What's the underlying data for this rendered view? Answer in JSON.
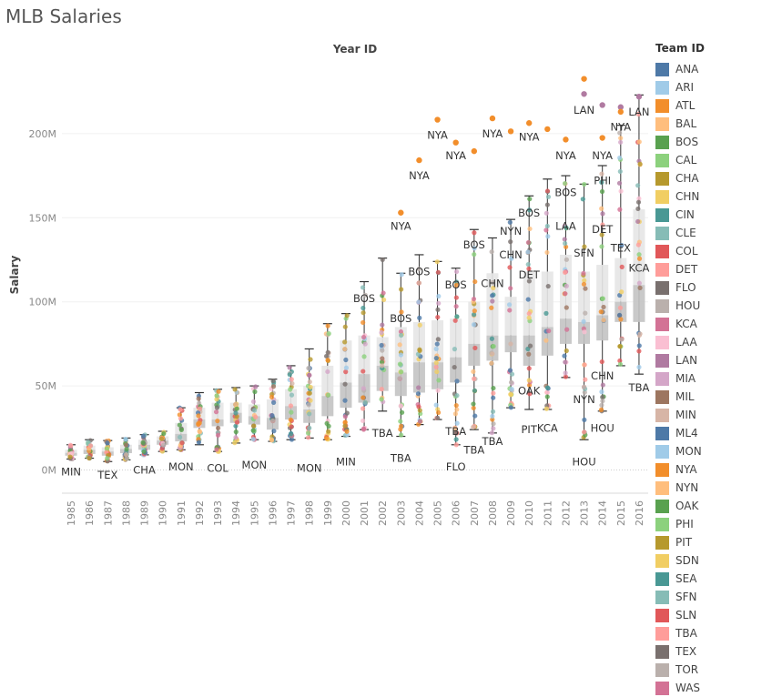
{
  "title": "MLB Salaries",
  "chart_data": {
    "type": "box-plot",
    "top_axis_label": "Year ID",
    "ylabel": "Salary",
    "ylim": [
      0,
      240000000
    ],
    "y_ticks": [
      0,
      50000000,
      100000000,
      150000000,
      200000000
    ],
    "y_tick_labels": [
      "0M",
      "50M",
      "100M",
      "150M",
      "200M"
    ],
    "years": [
      "1985",
      "1986",
      "1987",
      "1988",
      "1989",
      "1990",
      "1991",
      "1992",
      "1993",
      "1994",
      "1995",
      "1996",
      "1997",
      "1998",
      "1999",
      "2000",
      "2001",
      "2002",
      "2003",
      "2004",
      "2005",
      "2006",
      "2007",
      "2008",
      "2009",
      "2010",
      "2011",
      "2012",
      "2013",
      "2014",
      "2015",
      "2016"
    ],
    "boxes": [
      {
        "min": 6.5,
        "q1": 8.5,
        "median": 10.2,
        "q3": 12,
        "max": 15
      },
      {
        "min": 7,
        "q1": 9.5,
        "median": 12,
        "q3": 14.5,
        "max": 18
      },
      {
        "min": 5,
        "q1": 8.5,
        "median": 11,
        "q3": 13.5,
        "max": 17.5
      },
      {
        "min": 6,
        "q1": 10,
        "median": 12.5,
        "q3": 15,
        "max": 19
      },
      {
        "min": 9,
        "q1": 12,
        "median": 15,
        "q3": 18,
        "max": 21
      },
      {
        "min": 11,
        "q1": 15,
        "median": 17.5,
        "q3": 20,
        "max": 23
      },
      {
        "min": 12,
        "q1": 17,
        "median": 21.5,
        "q3": 28,
        "max": 37
      },
      {
        "min": 15,
        "q1": 25,
        "median": 30,
        "q3": 37,
        "max": 46
      },
      {
        "min": 11,
        "q1": 26,
        "median": 30,
        "q3": 40,
        "max": 48
      },
      {
        "min": 16,
        "q1": 28,
        "median": 34,
        "q3": 40,
        "max": 49
      },
      {
        "min": 18,
        "q1": 27,
        "median": 32,
        "q3": 39,
        "max": 50
      },
      {
        "min": 17,
        "q1": 24,
        "median": 31,
        "q3": 42,
        "max": 54
      },
      {
        "min": 18,
        "q1": 30,
        "median": 38,
        "q3": 48,
        "max": 62
      },
      {
        "min": 19,
        "q1": 28,
        "median": 36,
        "q3": 50,
        "max": 72
      },
      {
        "min": 18,
        "q1": 32,
        "median": 44,
        "q3": 62,
        "max": 87
      },
      {
        "min": 20,
        "q1": 37,
        "median": 52,
        "q3": 77,
        "max": 93
      },
      {
        "min": 24,
        "q1": 40,
        "median": 57,
        "q3": 80,
        "max": 112
      },
      {
        "min": 35,
        "q1": 47,
        "median": 62,
        "q3": 79,
        "max": 126
      },
      {
        "min": 20,
        "q1": 44,
        "median": 58,
        "q3": 85,
        "max": 117
      },
      {
        "min": 27,
        "q1": 46,
        "median": 64,
        "q3": 88,
        "max": 128
      },
      {
        "min": 30,
        "q1": 48,
        "median": 64,
        "q3": 89,
        "max": 124
      },
      {
        "min": 15,
        "q1": 52,
        "median": 67,
        "q3": 90,
        "max": 120
      },
      {
        "min": 24,
        "q1": 62,
        "median": 75,
        "q3": 100,
        "max": 143
      },
      {
        "min": 22,
        "q1": 65,
        "median": 80,
        "q3": 117,
        "max": 138
      },
      {
        "min": 37,
        "q1": 70,
        "median": 80,
        "q3": 103,
        "max": 149
      },
      {
        "min": 36,
        "q1": 62,
        "median": 80,
        "q3": 118,
        "max": 163
      },
      {
        "min": 36,
        "q1": 68,
        "median": 85,
        "q3": 118,
        "max": 173
      },
      {
        "min": 55,
        "q1": 75,
        "median": 90,
        "q3": 128,
        "max": 175
      },
      {
        "min": 18,
        "q1": 75,
        "median": 88,
        "q3": 118,
        "max": 170
      },
      {
        "min": 35,
        "q1": 77,
        "median": 92,
        "q3": 122,
        "max": 181
      },
      {
        "min": 62,
        "q1": 88,
        "median": 100,
        "q3": 126,
        "max": 205
      },
      {
        "min": 57,
        "q1": 88,
        "median": 110,
        "q3": 155,
        "max": 223
      }
    ],
    "outliers": [
      {
        "year": "2003",
        "value": 153,
        "team": "NYA",
        "color": "#F28E2B"
      },
      {
        "year": "2004",
        "value": 184.2,
        "team": "NYA",
        "color": "#F28E2B"
      },
      {
        "year": "2005",
        "value": 208.3,
        "team": "NYA",
        "color": "#F28E2B"
      },
      {
        "year": "2006",
        "value": 194.7,
        "team": "NYA",
        "color": "#F28E2B"
      },
      {
        "year": "2007",
        "value": 189.6,
        "team": "",
        "color": "#F28E2B"
      },
      {
        "year": "2008",
        "value": 209.1,
        "team": "NYA",
        "color": "#F28E2B"
      },
      {
        "year": "2009",
        "value": 201.4,
        "team": "",
        "color": "#F28E2B"
      },
      {
        "year": "2010",
        "value": 206.3,
        "team": "NYA",
        "color": "#F28E2B"
      },
      {
        "year": "2011",
        "value": 202.7,
        "team": "",
        "color": "#F28E2B"
      },
      {
        "year": "2012",
        "value": 196.5,
        "team": "NYA",
        "color": "#F28E2B"
      },
      {
        "year": "2013",
        "value": 232.6,
        "team": "",
        "color": "#F28E2B"
      },
      {
        "year": "2013",
        "value": 223.6,
        "team": "LAN",
        "color": "#B07AA1"
      },
      {
        "year": "2014",
        "value": 217,
        "team": "",
        "color": "#B07AA1"
      },
      {
        "year": "2014",
        "value": 197.5,
        "team": "NYA",
        "color": "#F28E2B"
      },
      {
        "year": "2015",
        "value": 215.8,
        "team": "",
        "color": "#B07AA1"
      },
      {
        "year": "2015",
        "value": 213,
        "team": "NYA",
        "color": "#F28E2B"
      },
      {
        "year": "2016",
        "value": 222,
        "team": "LAN",
        "color": "#B07AA1"
      }
    ],
    "annotations": [
      {
        "year": "1985",
        "value": -1,
        "text": "MIN"
      },
      {
        "year": "1987",
        "value": -3,
        "text": "TEX"
      },
      {
        "year": "1989",
        "value": 0,
        "text": "CHA"
      },
      {
        "year": "1991",
        "value": 2,
        "text": "MON"
      },
      {
        "year": "1993",
        "value": 1,
        "text": "COL"
      },
      {
        "year": "1995",
        "value": 3,
        "text": "MON"
      },
      {
        "year": "1998",
        "value": 1,
        "text": "MON"
      },
      {
        "year": "2000",
        "value": 5,
        "text": "MIN"
      },
      {
        "year": "2001",
        "value": 102,
        "text": "BOS"
      },
      {
        "year": "2002",
        "value": 22,
        "text": "TBA"
      },
      {
        "year": "2003",
        "value": 7,
        "text": "TBA"
      },
      {
        "year": "2003",
        "value": 90,
        "text": "BOS"
      },
      {
        "year": "2003",
        "value": 145,
        "text": "NYA"
      },
      {
        "year": "2004",
        "value": 118,
        "text": "BOS"
      },
      {
        "year": "2004",
        "value": 175,
        "text": "NYA"
      },
      {
        "year": "2005",
        "value": 199,
        "text": "NYA"
      },
      {
        "year": "2006",
        "value": 2,
        "text": "FLO"
      },
      {
        "year": "2006",
        "value": 23,
        "text": "TBA"
      },
      {
        "year": "2006",
        "value": 110,
        "text": "BOS"
      },
      {
        "year": "2006",
        "value": 187,
        "text": "NYA"
      },
      {
        "year": "2007",
        "value": 12,
        "text": "TBA"
      },
      {
        "year": "2007",
        "value": 134,
        "text": "BOS"
      },
      {
        "year": "2008",
        "value": 17,
        "text": "TBA"
      },
      {
        "year": "2008",
        "value": 111,
        "text": "CHN"
      },
      {
        "year": "2008",
        "value": 200,
        "text": "NYA"
      },
      {
        "year": "2009",
        "value": 128,
        "text": "CHN"
      },
      {
        "year": "2009",
        "value": 142,
        "text": "NYN"
      },
      {
        "year": "2010",
        "value": 24,
        "text": "PIT"
      },
      {
        "year": "2010",
        "value": 47,
        "text": "OAK"
      },
      {
        "year": "2010",
        "value": 116,
        "text": "DET"
      },
      {
        "year": "2010",
        "value": 153,
        "text": "BOS"
      },
      {
        "year": "2010",
        "value": 198,
        "text": "NYA"
      },
      {
        "year": "2011",
        "value": 25,
        "text": "KCA"
      },
      {
        "year": "2012",
        "value": 145,
        "text": "LAA"
      },
      {
        "year": "2012",
        "value": 165,
        "text": "BOS"
      },
      {
        "year": "2012",
        "value": 187,
        "text": "NYA"
      },
      {
        "year": "2013",
        "value": 5,
        "text": "HOU"
      },
      {
        "year": "2013",
        "value": 42,
        "text": "NYN"
      },
      {
        "year": "2013",
        "value": 129,
        "text": "SFN"
      },
      {
        "year": "2013",
        "value": 214,
        "text": "LAN"
      },
      {
        "year": "2014",
        "value": 25,
        "text": "HOU"
      },
      {
        "year": "2014",
        "value": 56,
        "text": "CHN"
      },
      {
        "year": "2014",
        "value": 143,
        "text": "DET"
      },
      {
        "year": "2014",
        "value": 172,
        "text": "PHI"
      },
      {
        "year": "2014",
        "value": 187,
        "text": "NYA"
      },
      {
        "year": "2015",
        "value": 132,
        "text": "TEX"
      },
      {
        "year": "2015",
        "value": 204,
        "text": "NYA"
      },
      {
        "year": "2016",
        "value": 49,
        "text": "TBA"
      },
      {
        "year": "2016",
        "value": 120,
        "text": "KCA"
      },
      {
        "year": "2016",
        "value": 213,
        "text": "LAN"
      }
    ],
    "legend": {
      "title": "Team ID",
      "placement": "right",
      "items": [
        {
          "name": "ANA",
          "color": "#4E79A7"
        },
        {
          "name": "ARI",
          "color": "#A0CBE8"
        },
        {
          "name": "ATL",
          "color": "#F28E2B"
        },
        {
          "name": "BAL",
          "color": "#FFBE7D"
        },
        {
          "name": "BOS",
          "color": "#59A14F"
        },
        {
          "name": "CAL",
          "color": "#8CD17D"
        },
        {
          "name": "CHA",
          "color": "#B6992D"
        },
        {
          "name": "CHN",
          "color": "#F1CE63"
        },
        {
          "name": "CIN",
          "color": "#499894"
        },
        {
          "name": "CLE",
          "color": "#86BCB6"
        },
        {
          "name": "COL",
          "color": "#E15759"
        },
        {
          "name": "DET",
          "color": "#FF9D9A"
        },
        {
          "name": "FLO",
          "color": "#79706E"
        },
        {
          "name": "HOU",
          "color": "#BAB0AC"
        },
        {
          "name": "KCA",
          "color": "#D37295"
        },
        {
          "name": "LAA",
          "color": "#FABFD2"
        },
        {
          "name": "LAN",
          "color": "#B07AA1"
        },
        {
          "name": "MIA",
          "color": "#D4A6C8"
        },
        {
          "name": "MIL",
          "color": "#9D7660"
        },
        {
          "name": "MIN",
          "color": "#D7B5A6"
        },
        {
          "name": "ML4",
          "color": "#4E79A7"
        },
        {
          "name": "MON",
          "color": "#A0CBE8"
        },
        {
          "name": "NYA",
          "color": "#F28E2B"
        },
        {
          "name": "NYN",
          "color": "#FFBE7D"
        },
        {
          "name": "OAK",
          "color": "#59A14F"
        },
        {
          "name": "PHI",
          "color": "#8CD17D"
        },
        {
          "name": "PIT",
          "color": "#B6992D"
        },
        {
          "name": "SDN",
          "color": "#F1CE63"
        },
        {
          "name": "SEA",
          "color": "#499894"
        },
        {
          "name": "SFN",
          "color": "#86BCB6"
        },
        {
          "name": "SLN",
          "color": "#E15759"
        },
        {
          "name": "TBA",
          "color": "#FF9D9A"
        },
        {
          "name": "TEX",
          "color": "#79706E"
        },
        {
          "name": "TOR",
          "color": "#BAB0AC"
        },
        {
          "name": "WAS",
          "color": "#D37295"
        }
      ]
    }
  }
}
